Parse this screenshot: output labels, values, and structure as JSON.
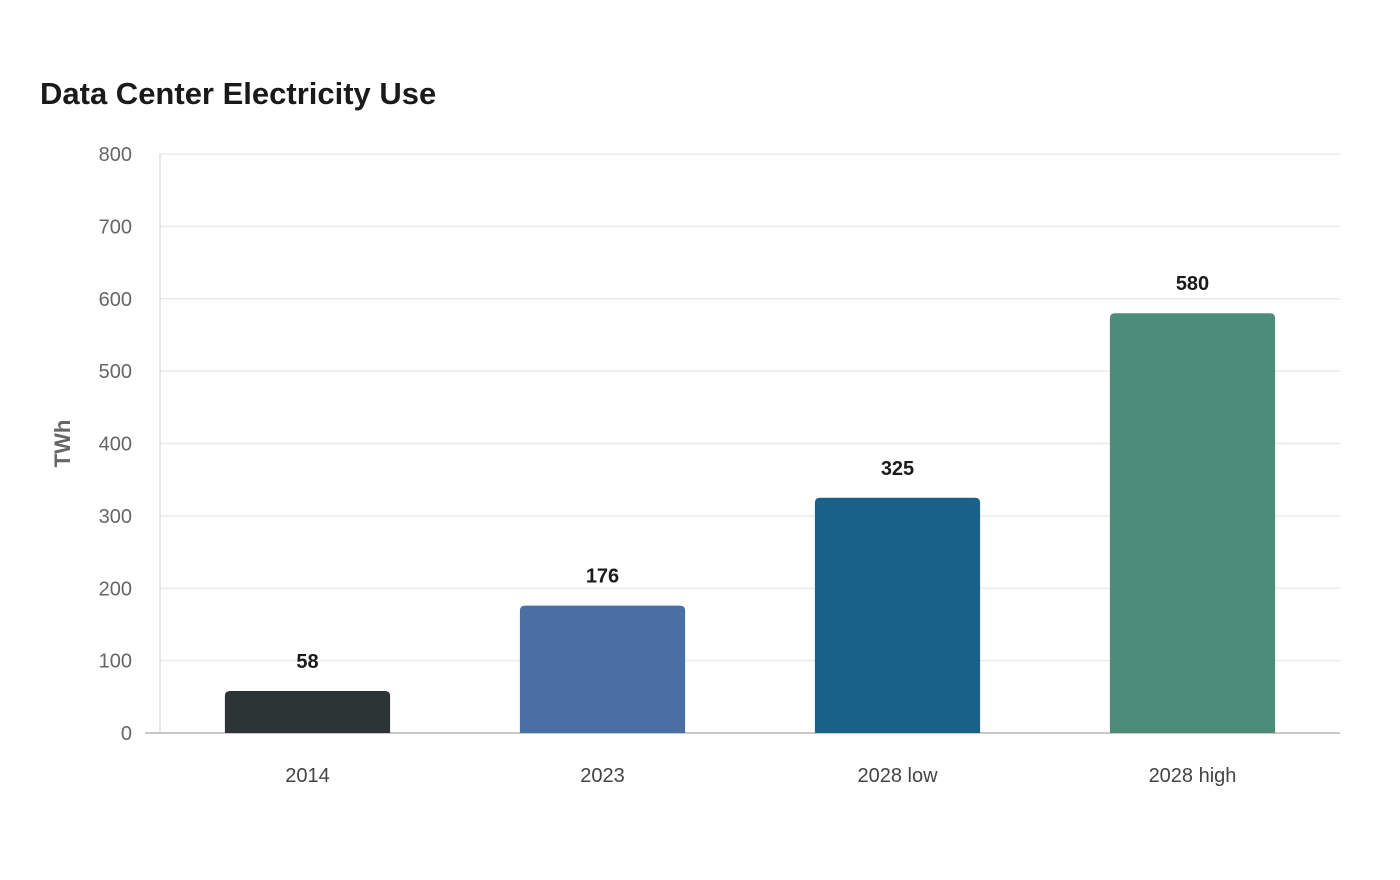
{
  "chart_data": {
    "type": "bar",
    "title": "Data Center Electricity Use",
    "xlabel": "",
    "ylabel": "TWh",
    "categories": [
      "2014",
      "2023",
      "2028 low",
      "2028 high"
    ],
    "values": [
      58,
      176,
      325,
      580
    ],
    "value_labels": [
      "58",
      "176",
      "325",
      "580"
    ],
    "colors": [
      "#2d3436",
      "#4a6fa5",
      "#1a6187",
      "#4e8c7a"
    ],
    "ylim": [
      0,
      800
    ],
    "yticks": [
      0,
      100,
      200,
      300,
      400,
      500,
      600,
      700,
      800
    ],
    "grid": true,
    "legend": "none"
  }
}
